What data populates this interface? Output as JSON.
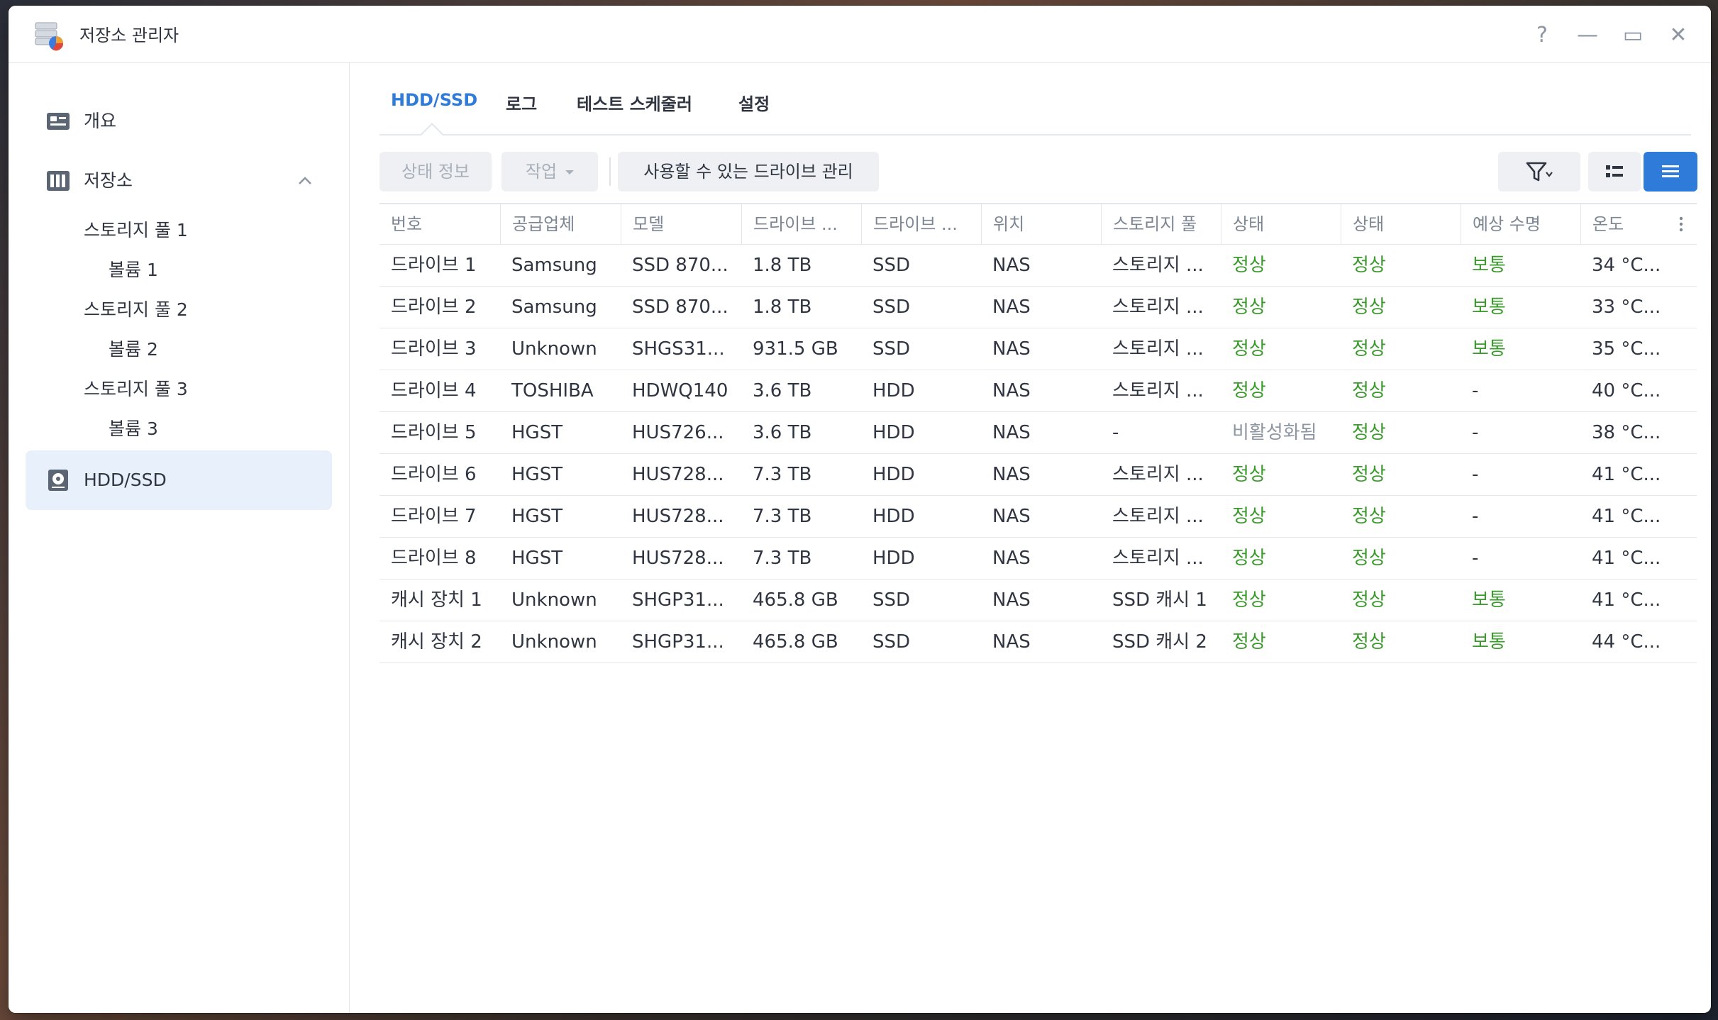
{
  "window": {
    "title": "저장소 관리자"
  },
  "controls": {
    "help": "?",
    "minimize": "—",
    "maximize": "▭",
    "close": "✕"
  },
  "sidebar": {
    "overview": "개요",
    "storage": "저장소",
    "pools": [
      {
        "label": "스토리지 풀 1",
        "volume": "볼륨 1"
      },
      {
        "label": "스토리지 풀 2",
        "volume": "볼륨 2"
      },
      {
        "label": "스토리지 풀 3",
        "volume": "볼륨 3"
      }
    ],
    "hddssd": "HDD/SSD"
  },
  "tabs": [
    "HDD/SSD",
    "로그",
    "테스트 스케줄러",
    "설정"
  ],
  "toolbar": {
    "status_info": "상태 정보",
    "action": "작업",
    "manage_drives": "사용할 수 있는 드라이브 관리"
  },
  "table": {
    "columns": [
      "번호",
      "공급업체",
      "모델",
      "드라이브 ...",
      "드라이브 ...",
      "위치",
      "스토리지 풀",
      "상태",
      "상태",
      "예상 수명",
      "온도"
    ],
    "rows": [
      [
        "드라이브 1",
        "Samsung",
        "SSD 870...",
        "1.8 TB",
        "SSD",
        "NAS",
        "스토리지 ...",
        "정상",
        "정상",
        "보통",
        "34 °C..."
      ],
      [
        "드라이브 2",
        "Samsung",
        "SSD 870...",
        "1.8 TB",
        "SSD",
        "NAS",
        "스토리지 ...",
        "정상",
        "정상",
        "보통",
        "33 °C..."
      ],
      [
        "드라이브 3",
        "Unknown",
        "SHGS31...",
        "931.5 GB",
        "SSD",
        "NAS",
        "스토리지 ...",
        "정상",
        "정상",
        "보통",
        "35 °C..."
      ],
      [
        "드라이브 4",
        "TOSHIBA",
        "HDWQ140",
        "3.6 TB",
        "HDD",
        "NAS",
        "스토리지 ...",
        "정상",
        "정상",
        "-",
        "40 °C..."
      ],
      [
        "드라이브 5",
        "HGST",
        "HUS726...",
        "3.6 TB",
        "HDD",
        "NAS",
        "-",
        "비활성화됨",
        "정상",
        "-",
        "38 °C..."
      ],
      [
        "드라이브 6",
        "HGST",
        "HUS728...",
        "7.3 TB",
        "HDD",
        "NAS",
        "스토리지 ...",
        "정상",
        "정상",
        "-",
        "41 °C..."
      ],
      [
        "드라이브 7",
        "HGST",
        "HUS728...",
        "7.3 TB",
        "HDD",
        "NAS",
        "스토리지 ...",
        "정상",
        "정상",
        "-",
        "41 °C..."
      ],
      [
        "드라이브 8",
        "HGST",
        "HUS728...",
        "7.3 TB",
        "HDD",
        "NAS",
        "스토리지 ...",
        "정상",
        "정상",
        "-",
        "41 °C..."
      ],
      [
        "캐시 장치 1",
        "Unknown",
        "SHGP31...",
        "465.8 GB",
        "SSD",
        "NAS",
        "SSD 캐시 1",
        "정상",
        "정상",
        "보통",
        "41 °C..."
      ],
      [
        "캐시 장치 2",
        "Unknown",
        "SHGP31...",
        "465.8 GB",
        "SSD",
        "NAS",
        "SSD 캐시 2",
        "정상",
        "정상",
        "보통",
        "44 °C..."
      ]
    ]
  },
  "colors": {
    "accent": "#2f7bd9",
    "healthy": "#3a9a2b",
    "disabled": "#8d96a3"
  }
}
